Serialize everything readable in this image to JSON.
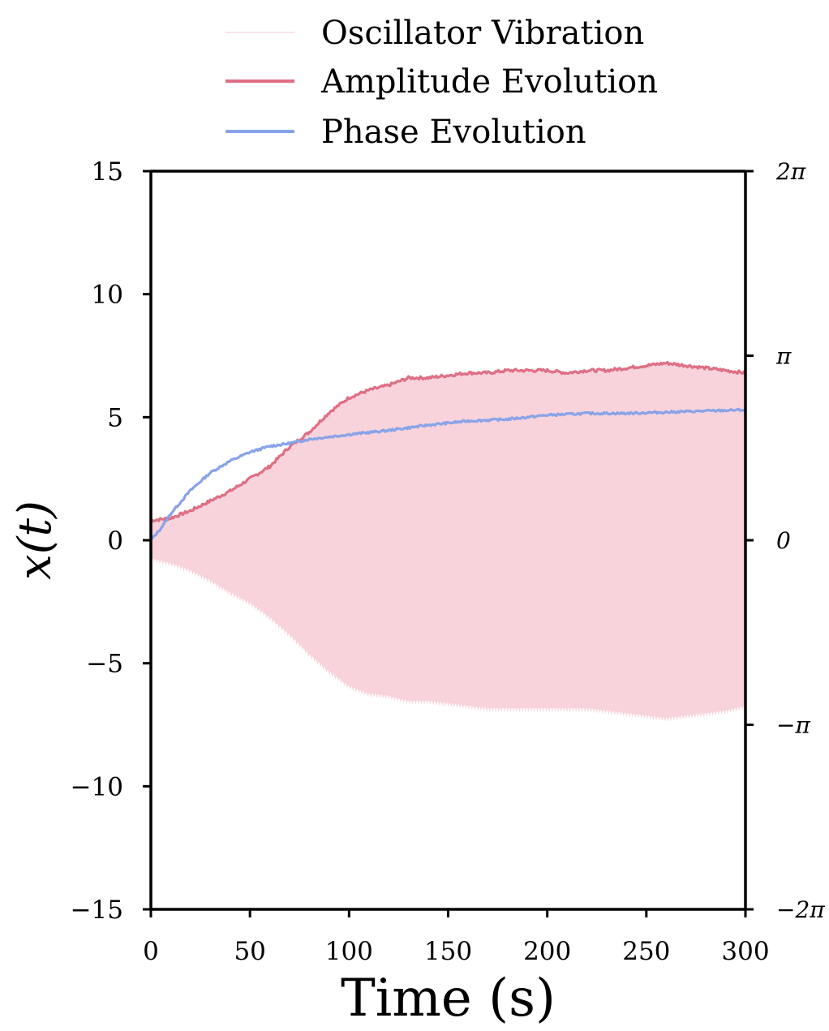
{
  "chart_data": {
    "type": "line",
    "xlabel": "Time (s)",
    "ylabel": "x(t)",
    "xlim": [
      0,
      300
    ],
    "ylim": [
      -15,
      15
    ],
    "xticks": [
      "0",
      "50",
      "100",
      "150",
      "200",
      "250",
      "300"
    ],
    "yticks": [
      "−15",
      "−10",
      "−5",
      "0",
      "5",
      "10",
      "15"
    ],
    "y2lim": [
      -6.2832,
      6.2832
    ],
    "y2ticks": [
      "−2π",
      "−π",
      "0",
      "π",
      "2π"
    ],
    "legend_position": "top",
    "colors": {
      "oscillation": "#f8d3db",
      "amplitude": "#df6f85",
      "phase": "#88a3e8"
    },
    "series": [
      {
        "name": "Oscillator Vibration",
        "style": "dense oscillation filling between -amplitude and +amplitude",
        "envelope_upper": [
          [
            0,
            0.8
          ],
          [
            10,
            0.9
          ],
          [
            20,
            1.2
          ],
          [
            30,
            1.6
          ],
          [
            40,
            2.0
          ],
          [
            50,
            2.5
          ],
          [
            60,
            3.0
          ],
          [
            70,
            3.8
          ],
          [
            80,
            4.4
          ],
          [
            90,
            5.2
          ],
          [
            100,
            5.8
          ],
          [
            110,
            6.1
          ],
          [
            120,
            6.3
          ],
          [
            130,
            6.6
          ],
          [
            140,
            6.6
          ],
          [
            150,
            6.7
          ],
          [
            160,
            6.8
          ],
          [
            170,
            6.8
          ],
          [
            180,
            6.9
          ],
          [
            190,
            6.9
          ],
          [
            200,
            6.9
          ],
          [
            210,
            6.8
          ],
          [
            220,
            6.9
          ],
          [
            230,
            6.9
          ],
          [
            240,
            7.0
          ],
          [
            250,
            7.1
          ],
          [
            260,
            7.2
          ],
          [
            270,
            7.1
          ],
          [
            280,
            7.0
          ],
          [
            290,
            6.9
          ],
          [
            300,
            6.8
          ]
        ],
        "envelope_lower": [
          [
            0,
            -0.8
          ],
          [
            10,
            -1.0
          ],
          [
            20,
            -1.3
          ],
          [
            30,
            -1.7
          ],
          [
            40,
            -2.2
          ],
          [
            50,
            -2.6
          ],
          [
            60,
            -3.2
          ],
          [
            70,
            -3.9
          ],
          [
            80,
            -4.7
          ],
          [
            90,
            -5.4
          ],
          [
            100,
            -6.0
          ],
          [
            110,
            -6.3
          ],
          [
            120,
            -6.4
          ],
          [
            130,
            -6.6
          ],
          [
            140,
            -6.6
          ],
          [
            150,
            -6.7
          ],
          [
            160,
            -6.8
          ],
          [
            170,
            -6.9
          ],
          [
            180,
            -6.9
          ],
          [
            190,
            -6.9
          ],
          [
            200,
            -6.9
          ],
          [
            210,
            -6.9
          ],
          [
            220,
            -6.9
          ],
          [
            230,
            -7.0
          ],
          [
            240,
            -7.1
          ],
          [
            250,
            -7.2
          ],
          [
            260,
            -7.3
          ],
          [
            270,
            -7.2
          ],
          [
            280,
            -7.1
          ],
          [
            290,
            -7.0
          ],
          [
            300,
            -6.8
          ]
        ]
      },
      {
        "name": "Amplitude Evolution",
        "axis": "left",
        "points": [
          [
            0,
            0.8
          ],
          [
            10,
            0.9
          ],
          [
            20,
            1.2
          ],
          [
            30,
            1.6
          ],
          [
            40,
            2.0
          ],
          [
            50,
            2.5
          ],
          [
            60,
            3.0
          ],
          [
            70,
            3.8
          ],
          [
            80,
            4.4
          ],
          [
            90,
            5.2
          ],
          [
            100,
            5.8
          ],
          [
            110,
            6.1
          ],
          [
            120,
            6.3
          ],
          [
            130,
            6.6
          ],
          [
            140,
            6.6
          ],
          [
            150,
            6.7
          ],
          [
            160,
            6.8
          ],
          [
            170,
            6.8
          ],
          [
            180,
            6.9
          ],
          [
            190,
            6.9
          ],
          [
            200,
            6.9
          ],
          [
            210,
            6.8
          ],
          [
            220,
            6.9
          ],
          [
            230,
            6.9
          ],
          [
            240,
            7.0
          ],
          [
            250,
            7.1
          ],
          [
            260,
            7.2
          ],
          [
            270,
            7.1
          ],
          [
            280,
            7.0
          ],
          [
            290,
            6.9
          ],
          [
            300,
            6.8
          ]
        ]
      },
      {
        "name": "Phase Evolution",
        "axis": "right",
        "points": [
          [
            0,
            0.0
          ],
          [
            5,
            0.2
          ],
          [
            10,
            0.45
          ],
          [
            15,
            0.65
          ],
          [
            20,
            0.85
          ],
          [
            25,
            1.0
          ],
          [
            30,
            1.15
          ],
          [
            40,
            1.35
          ],
          [
            50,
            1.5
          ],
          [
            60,
            1.6
          ],
          [
            70,
            1.65
          ],
          [
            80,
            1.72
          ],
          [
            90,
            1.76
          ],
          [
            100,
            1.8
          ],
          [
            120,
            1.87
          ],
          [
            140,
            1.96
          ],
          [
            160,
            2.03
          ],
          [
            180,
            2.06
          ],
          [
            200,
            2.13
          ],
          [
            220,
            2.16
          ],
          [
            240,
            2.16
          ],
          [
            260,
            2.18
          ],
          [
            280,
            2.2
          ],
          [
            300,
            2.22
          ]
        ]
      }
    ]
  }
}
